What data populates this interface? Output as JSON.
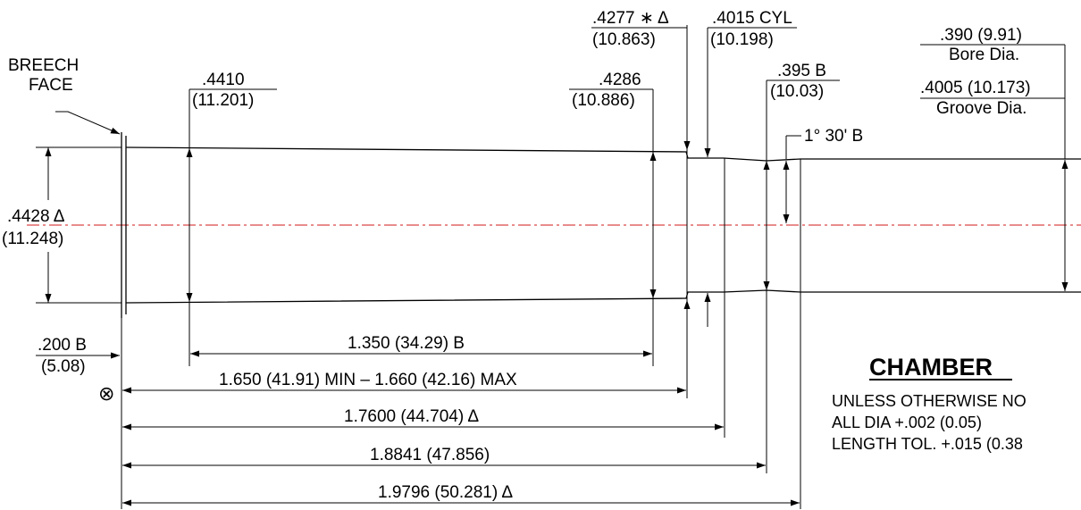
{
  "title": "CHAMBER",
  "notes": {
    "line1": "UNLESS OTHERWISE NO",
    "line2": "ALL DIA +.002 (0.05)",
    "line3": "LENGTH TOL. +.015 (0.38"
  },
  "labels": {
    "breech_1": "BREECH",
    "breech_2": "FACE",
    "dia_4428_in": ".4428 Δ",
    "dia_4428_mm": "(11.248)",
    "dia_4410_in": ".4410",
    "dia_4410_mm": "(11.201)",
    "dia_4286_in": ".4286",
    "dia_4286_mm": "(10.886)",
    "dia_4277_in": ".4277 ∗ Δ",
    "dia_4277_mm": "(10.863)",
    "dia_4015_in": ".4015 CYL",
    "dia_4015_mm": "(10.198)",
    "dia_395_in": ".395 B",
    "dia_395_mm": "(10.03)",
    "angle": "1° 30' B",
    "bore": ".390 (9.91)",
    "bore_caption": "Bore Dia.",
    "groove": ".4005 (10.173)",
    "groove_caption": "Groove Dia.",
    "len_200_in": ".200 B",
    "len_200_mm": "(5.08)",
    "len_1350": "1.350 (34.29) B",
    "len_1650": "1.650 (41.91) MIN – 1.660 (42.16) MAX",
    "len_17600": "1.7600 (44.704) Δ",
    "len_18841": "1.8841 (47.856)",
    "len_19796": "1.9796 (50.281) Δ",
    "datum_symbol": "⊗"
  }
}
